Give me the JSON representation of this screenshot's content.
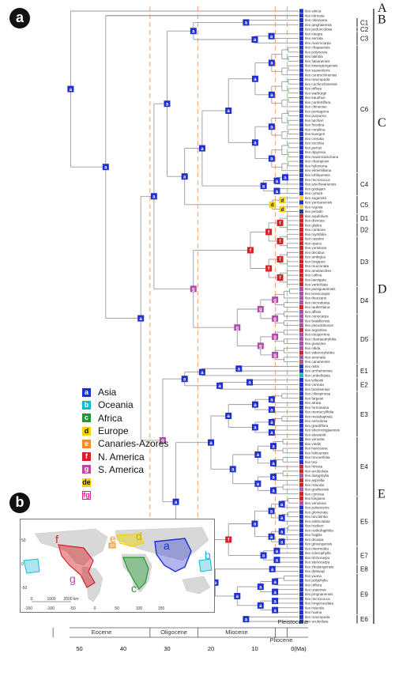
{
  "panels": {
    "a": "a",
    "b": "b"
  },
  "groups": [
    "A",
    "B",
    "C",
    "D",
    "E"
  ],
  "clades": [
    "C1",
    "C2",
    "C3",
    "C6",
    "C4",
    "C5",
    "D1",
    "D2",
    "D3",
    "D4",
    "D5",
    "E1",
    "E2",
    "E3",
    "E4",
    "E5",
    "E7",
    "E8",
    "E9",
    "E6"
  ],
  "epochs": [
    "Eocene",
    "Oligocene",
    "Miocene",
    "Pliocene",
    "Pleistocene"
  ],
  "time_ticks": [
    "50",
    "40",
    "30",
    "20",
    "10",
    "0(Ma)"
  ],
  "legend": [
    {
      "code": "a",
      "label": "Asia",
      "color": "#1f2fd0"
    },
    {
      "code": "b",
      "label": "Oceania",
      "color": "#13b8d8"
    },
    {
      "code": "c",
      "label": "Africa",
      "color": "#1f9a2a"
    },
    {
      "code": "d",
      "label": "Europe",
      "color": "#f3d400"
    },
    {
      "code": "e",
      "label": "Canaries-Azores",
      "color": "#f08d2a"
    },
    {
      "code": "f",
      "label": "N. America",
      "color": "#d81f26"
    },
    {
      "code": "g",
      "label": "S. America",
      "color": "#b54aa8"
    },
    {
      "code": "de",
      "label": "",
      "color": "#f3d400"
    },
    {
      "code": "fg",
      "label": "",
      "color": "#e0208a"
    }
  ],
  "map": {
    "region_labels": [
      "f",
      "e",
      "d",
      "a",
      "b",
      "g",
      "c"
    ],
    "x_ticks": [
      "-150",
      "-100",
      "-50",
      "0",
      "50",
      "100",
      "150"
    ],
    "y_ticks": [
      "50",
      "0",
      "-50"
    ],
    "scale": [
      "0",
      "1000",
      "2000 km"
    ]
  },
  "taxa": [
    "Ilex_sinica",
    "Ilex_intricata",
    "Ilex_chieniana",
    "Ilex_qinghaiensis",
    "Ilex_pedunculosa",
    "Ilex_integra",
    "Ilex_serrata",
    "Ilex_macrocarpa",
    "Ilex_chapaensis",
    "Ilex_polyneura",
    "Ilex_latifolia",
    "Ilex_fukienensis",
    "Ilex_kwangtungensis",
    "Ilex_suaveolens",
    "Ilex_centrochinensis",
    "Ilex_macropoda",
    "Ilex_cochinchinensis",
    "Ilex_triflora",
    "Ilex_warburgii",
    "Ilex_kaushue",
    "Ilex_confertiflora",
    "Ilex_chinensis",
    "Ilex_pentagona",
    "Ilex_purpurea",
    "Ilex_tutcheri",
    "Ilex_ficoidea",
    "Ilex_corallina",
    "Ilex_buergeri",
    "Ilex_crenata",
    "Ilex_excelsa",
    "Ilex_pernyi",
    "Ilex_dipyrena",
    "Ilex_maximowicziana",
    "Ilex_championii",
    "Ilex_hylonoma",
    "Ilex_elmerrilliana",
    "Ilex_lohfauensis",
    "Ilex_micrococca",
    "Ilex_szechwanensis",
    "Ilex_godajam",
    "Ilex_cyrtura",
    "Ilex_sugerokii",
    "Ilex_yunnanensis",
    "Ilex_rugosa",
    "Ilex_perado",
    "Ilex_aquifolium",
    "Ilex_dumosa",
    "Ilex_glabra",
    "Ilex_coriacea",
    "Ilex_myrtifolia",
    "Ilex_cassine",
    "Ilex_opaca",
    "Ilex_vomitoria",
    "Ilex_decidua",
    "Ilex_ambigua",
    "Ilex_longipes",
    "Ilex_mucronata",
    "Ilex_amelanchier",
    "Ilex_collina",
    "Ilex_laevigata",
    "Ilex_verticillata",
    "Ilex_paraguariensis",
    "Ilex_brevicuspis",
    "Ilex_theezans",
    "Ilex_microdonta",
    "Ilex_taubertiana",
    "Ilex_affinis",
    "Ilex_conocarpa",
    "Ilex_brasiliensis",
    "Ilex_pseudobuxus",
    "Ilex_argentina",
    "Ilex_integerrima",
    "Ilex_chamaedryfolia",
    "Ilex_guayusa",
    "Ilex_nitida",
    "Ilex_sideroxyloides",
    "Ilex_anomala",
    "Ilex_canariensis",
    "Ilex_mitis",
    "Ilex_arnhemensis",
    "Ilex_umbellulata",
    "Ilex_wilsonii",
    "Ilex_cornuta",
    "Ilex_bioritsensis",
    "Ilex_ciliospinosa",
    "Ilex_fargesii",
    "Ilex_atrata",
    "Ilex_formosana",
    "Ilex_memecylifolia",
    "Ilex_metabaptista",
    "Ilex_nervulosa",
    "Ilex_graciliflora",
    "Ilex_shennongjiaensis",
    "Ilex_stewardii",
    "Ilex_venusta",
    "Ilex_viridis",
    "Ilex_hanceana",
    "Ilex_liukiuensis",
    "Ilex_lonicerifolia",
    "Ilex_tsoi",
    "Ilex_hirsuta",
    "Ilex_aculeolata",
    "Ilex_dasyphylla",
    "Ilex_asprella",
    "Ilex_rotunda",
    "Ilex_goshiensis",
    "Ilex_cymosa",
    "Ilex_kingiana",
    "Ilex_venulosa",
    "Ilex_pubescens",
    "Ilex_glomerata",
    "Ilex_lancilimba",
    "Ilex_editicostata",
    "Ilex_hookeri",
    "Ilex_nothofagifolia",
    "Ilex_fragilis",
    "Ilex_dicarpa",
    "Ilex_gintungensis",
    "Ilex_intermedia",
    "Ilex_sclerophylla",
    "Ilex_trichocarpa",
    "Ilex_stenocarpa",
    "Ilex_zhejiangensis",
    "Ilex_delavayi",
    "Ilex_yuana",
    "Ilex_polyphylla",
    "Ilex_triflora_ext",
    "Ilex_uraiensis",
    "Ilex_pingnanensis",
    "Ilex_micrococca_ext",
    "Ilex_longecaudata",
    "Ilex_rotunda_ext",
    "Ilex_huana",
    "Ilex_macropoda_ext",
    "Ilex_aculeolata_ext"
  ],
  "node_labels": [
    "a",
    "b",
    "c",
    "d",
    "e",
    "f",
    "g",
    "de",
    "fg"
  ]
}
